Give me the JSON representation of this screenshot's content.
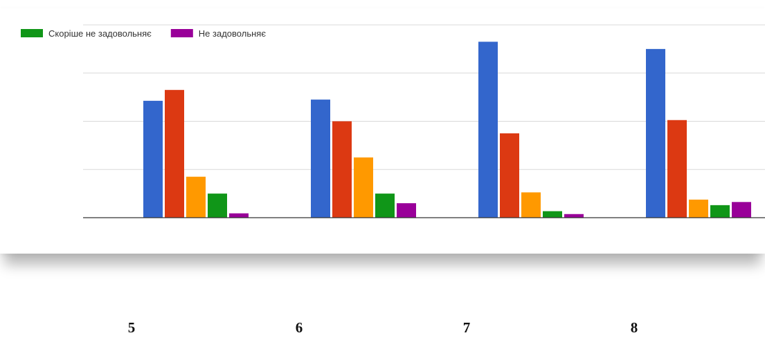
{
  "chart_data": {
    "type": "bar",
    "categories": [
      "5",
      "6",
      "7",
      "8"
    ],
    "series": [
      {
        "color": "#3366cc",
        "values": [
          48.5,
          49,
          73,
          70
        ]
      },
      {
        "color": "#dc3912",
        "values": [
          53,
          40,
          35,
          40.5
        ]
      },
      {
        "color": "#ff9900",
        "values": [
          17,
          25,
          10.5,
          7.5
        ]
      },
      {
        "name": "Скоріше не задовольняє",
        "color": "#109618",
        "values": [
          10,
          10,
          2.7,
          5.2
        ]
      },
      {
        "name": "Не задовольняє",
        "color": "#990099",
        "values": [
          1.8,
          6,
          1.5,
          6.5
        ]
      }
    ],
    "ylim": [
      0,
      80
    ],
    "gridlines": [
      20,
      40,
      60,
      80
    ],
    "grid": true,
    "legend_position": "top-left"
  }
}
